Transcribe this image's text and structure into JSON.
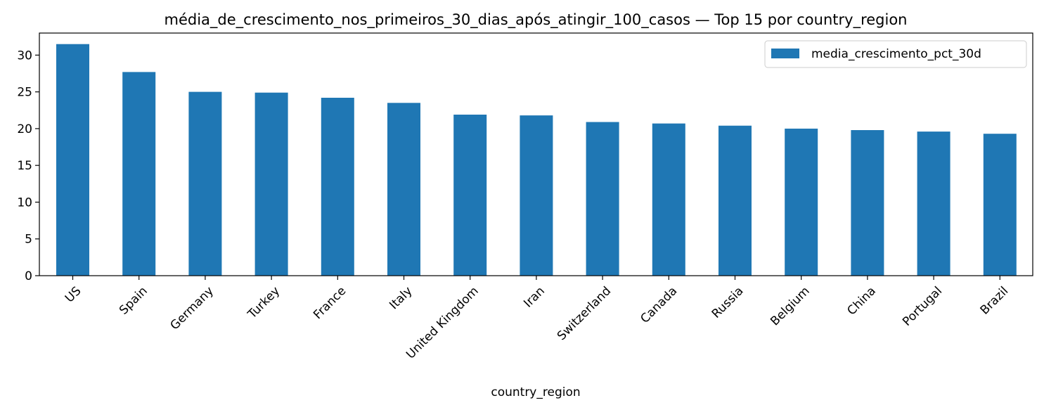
{
  "chart_data": {
    "type": "bar",
    "title": "média_de_crescimento_nos_primeiros_30_dias_após_atingir_100_casos — Top 15 por country_region",
    "xlabel": "country_region",
    "ylabel": "",
    "categories": [
      "US",
      "Spain",
      "Germany",
      "Turkey",
      "France",
      "Italy",
      "United Kingdom",
      "Iran",
      "Switzerland",
      "Canada",
      "Russia",
      "Belgium",
      "China",
      "Portugal",
      "Brazil"
    ],
    "series": [
      {
        "name": "media_crescimento_pct_30d",
        "color": "#1f77b4",
        "values": [
          31.5,
          27.7,
          25.0,
          24.9,
          24.2,
          23.5,
          21.9,
          21.8,
          20.9,
          20.7,
          20.4,
          20.0,
          19.8,
          19.6,
          19.3
        ]
      }
    ],
    "ylim": [
      0,
      33
    ],
    "yticks": [
      "0",
      "5",
      "10",
      "15",
      "20",
      "25",
      "30"
    ],
    "grid": false,
    "legend_position": "upper right"
  }
}
